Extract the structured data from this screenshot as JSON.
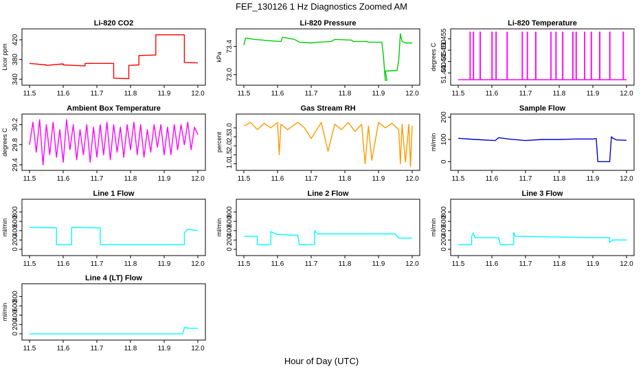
{
  "figure": {
    "title": "FEF_130126  1 Hz Diagnostics Zoomed AM",
    "xlabel": "Hour of Day (UTC)"
  },
  "chart_data": [
    {
      "type": "line",
      "title": "Li-820 CO2",
      "ylabel": "Licor ppm",
      "color": "#ff0000",
      "xlim": [
        11.5,
        12.0
      ],
      "ylim": [
        332,
        438
      ],
      "xticks": [
        "11.5",
        "11.6",
        "11.7",
        "11.8",
        "11.9",
        "12.0"
      ],
      "yticks": [
        340,
        380,
        420
      ],
      "series": [
        {
          "x": [
            11.5,
            11.55,
            11.55,
            11.6,
            11.6,
            11.665,
            11.665,
            11.75,
            11.75,
            11.795,
            11.795,
            11.825,
            11.825,
            11.875,
            11.875,
            11.96,
            11.96,
            12.0
          ],
          "y": [
            372,
            369,
            368,
            371,
            369,
            367,
            372,
            372,
            342,
            341,
            368,
            369,
            388,
            389,
            430,
            430,
            374,
            373
          ]
        }
      ]
    },
    {
      "type": "line",
      "title": "Li-820 Pressure",
      "ylabel": "kPa",
      "color": "#00cc00",
      "xlim": [
        11.5,
        12.0
      ],
      "ylim": [
        72.88,
        73.62
      ],
      "xticks": [
        "11.5",
        "11.6",
        "11.7",
        "11.8",
        "11.9",
        "12.0"
      ],
      "yticks": [
        73.0,
        73.4
      ],
      "series": [
        {
          "x": [
            11.5,
            11.505,
            11.53,
            11.58,
            11.61,
            11.615,
            11.65,
            11.665,
            11.7,
            11.72,
            11.76,
            11.77,
            11.82,
            11.825,
            11.865,
            11.87,
            11.91,
            11.915,
            11.92,
            11.925,
            11.92,
            11.955,
            11.96,
            11.965,
            11.97,
            11.98,
            12.0
          ],
          "y": [
            73.42,
            73.52,
            73.5,
            73.48,
            73.47,
            73.53,
            73.5,
            73.46,
            73.45,
            73.46,
            73.47,
            73.5,
            73.49,
            73.47,
            73.47,
            73.46,
            73.46,
            73.25,
            72.92,
            72.92,
            73.05,
            73.06,
            73.2,
            73.58,
            73.47,
            73.45,
            73.45
          ]
        }
      ]
    },
    {
      "type": "line",
      "title": "Li-820 Temperature",
      "ylabel": "degrees C",
      "color": "#ff00ff",
      "xlim": [
        11.5,
        12.0
      ],
      "ylim": [
        51.4355,
        51.4585
      ],
      "xticks": [
        "11.5",
        "11.6",
        "11.7",
        "11.8",
        "11.9",
        "12.0"
      ],
      "yticks": [
        51.44,
        51.445,
        51.45,
        51.455
      ],
      "series": [
        {
          "x": [
            11.5,
            11.535,
            11.535,
            11.536,
            11.536,
            11.545,
            11.545,
            11.546,
            11.546,
            11.565,
            11.565,
            11.566,
            11.566,
            11.6,
            11.6,
            11.601,
            11.601,
            11.612,
            11.612,
            11.613,
            11.613,
            11.645,
            11.645,
            11.646,
            11.646,
            11.69,
            11.69,
            11.691,
            11.691,
            11.705,
            11.705,
            11.706,
            11.706,
            11.73,
            11.73,
            11.731,
            11.731,
            11.775,
            11.775,
            11.776,
            11.776,
            11.79,
            11.79,
            11.791,
            11.791,
            11.81,
            11.81,
            11.811,
            11.811,
            11.84,
            11.84,
            11.841,
            11.841,
            11.85,
            11.85,
            11.851,
            11.851,
            11.875,
            11.875,
            11.876,
            11.876,
            11.895,
            11.895,
            11.896,
            11.896,
            11.92,
            11.92,
            11.921,
            11.921,
            11.95,
            11.95,
            11.951,
            11.951,
            11.99,
            11.99,
            11.991,
            11.991,
            12.0
          ],
          "y": [
            51.437,
            51.437,
            51.458,
            51.458,
            51.437,
            51.437,
            51.458,
            51.458,
            51.437,
            51.437,
            51.458,
            51.458,
            51.437,
            51.437,
            51.458,
            51.458,
            51.437,
            51.437,
            51.458,
            51.458,
            51.437,
            51.437,
            51.458,
            51.458,
            51.437,
            51.437,
            51.458,
            51.458,
            51.437,
            51.437,
            51.458,
            51.458,
            51.437,
            51.437,
            51.458,
            51.458,
            51.437,
            51.437,
            51.458,
            51.458,
            51.437,
            51.437,
            51.458,
            51.458,
            51.437,
            51.437,
            51.458,
            51.458,
            51.437,
            51.437,
            51.458,
            51.458,
            51.437,
            51.437,
            51.458,
            51.458,
            51.437,
            51.437,
            51.458,
            51.458,
            51.437,
            51.437,
            51.458,
            51.458,
            51.437,
            51.437,
            51.458,
            51.458,
            51.437,
            51.437,
            51.458,
            51.458,
            51.437,
            51.437,
            51.458,
            51.458,
            51.437,
            51.437
          ]
        }
      ]
    },
    {
      "type": "line",
      "title": "Ambient Box Temperature",
      "ylabel": "degrees C",
      "color": "#ff00ff",
      "xlim": [
        11.5,
        12.0
      ],
      "ylim": [
        29.33,
        30.37
      ],
      "xticks": [
        "11.5",
        "11.6",
        "11.7",
        "11.8",
        "11.9",
        "12.0"
      ],
      "yticks": [
        29.4,
        29.8,
        30.2
      ],
      "series": [
        {
          "x": [
            11.5,
            11.51,
            11.52,
            11.53,
            11.54,
            11.55,
            11.56,
            11.57,
            11.58,
            11.59,
            11.6,
            11.61,
            11.62,
            11.63,
            11.64,
            11.65,
            11.66,
            11.67,
            11.68,
            11.69,
            11.7,
            11.71,
            11.72,
            11.73,
            11.74,
            11.75,
            11.76,
            11.77,
            11.78,
            11.79,
            11.8,
            11.81,
            11.82,
            11.83,
            11.84,
            11.85,
            11.86,
            11.87,
            11.88,
            11.89,
            11.9,
            11.91,
            11.92,
            11.93,
            11.94,
            11.95,
            11.96,
            11.97,
            11.98,
            11.99,
            12.0
          ],
          "y": [
            29.8,
            30.25,
            29.65,
            30.3,
            29.4,
            30.2,
            29.6,
            30.25,
            29.55,
            30.1,
            29.45,
            30.3,
            29.7,
            30.2,
            29.5,
            30.1,
            29.6,
            30.2,
            29.45,
            30.15,
            29.55,
            30.2,
            29.6,
            30.25,
            29.5,
            30.2,
            29.65,
            30.15,
            29.55,
            30.2,
            29.7,
            30.25,
            29.6,
            30.2,
            29.55,
            30.1,
            29.65,
            30.2,
            29.75,
            30.2,
            29.6,
            30.15,
            29.6,
            30.2,
            29.7,
            30.2,
            29.8,
            30.25,
            29.7,
            30.15,
            30.0
          ]
        }
      ]
    },
    {
      "type": "line",
      "title": "Gas Stream RH",
      "ylabel": "percent",
      "color": "#ff9900",
      "xlim": [
        11.5,
        12.0
      ],
      "ylim": [
        0.75,
        3.65
      ],
      "xticks": [
        "11.5",
        "11.6",
        "11.7",
        "11.8",
        "11.9",
        "12.0"
      ],
      "yticks": [
        1.0,
        1.5,
        2.0,
        2.5,
        3.0
      ],
      "series": [
        {
          "x": [
            11.5,
            11.52,
            11.54,
            11.56,
            11.58,
            11.6,
            11.605,
            11.61,
            11.63,
            11.66,
            11.68,
            11.7,
            11.73,
            11.75,
            11.77,
            11.79,
            11.81,
            11.83,
            11.85,
            11.86,
            11.87,
            11.88,
            11.9,
            11.92,
            11.94,
            11.96,
            11.965,
            11.97,
            11.98,
            11.99,
            11.995,
            12.0
          ],
          "y": [
            3.1,
            3.3,
            2.9,
            3.25,
            3.0,
            3.3,
            1.5,
            3.2,
            2.9,
            3.3,
            3.0,
            2.4,
            3.3,
            1.7,
            3.2,
            2.9,
            3.3,
            2.8,
            3.2,
            1.0,
            3.1,
            1.2,
            3.3,
            3.0,
            3.25,
            2.9,
            1.0,
            3.2,
            1.1,
            3.2,
            0.85,
            3.1
          ]
        }
      ]
    },
    {
      "type": "line",
      "title": "Sample Flow",
      "ylabel": "ml/min",
      "color": "#0000cc",
      "xlim": [
        11.5,
        12.0
      ],
      "ylim": [
        -30,
        205
      ],
      "xticks": [
        "11.5",
        "11.6",
        "11.7",
        "11.8",
        "11.9",
        "12.0"
      ],
      "yticks": [
        0,
        100,
        200
      ],
      "series": [
        {
          "x": [
            11.5,
            11.55,
            11.6,
            11.61,
            11.62,
            11.65,
            11.7,
            11.75,
            11.8,
            11.85,
            11.9,
            11.91,
            11.915,
            11.95,
            11.955,
            11.96,
            11.97,
            12.0
          ],
          "y": [
            105,
            100,
            96,
            95,
            108,
            102,
            95,
            100,
            100,
            102,
            102,
            104,
            0,
            0,
            112,
            105,
            98,
            96
          ]
        }
      ]
    },
    {
      "type": "line",
      "title": "Line 1 Flow",
      "ylabel": "ml/min",
      "color": "#00ffff",
      "xlim": [
        11.5,
        12.0
      ],
      "ylim": [
        -90,
        1030
      ],
      "xticks": [
        "11.5",
        "11.6",
        "11.7",
        "11.8",
        "11.9",
        "12.0"
      ],
      "yticks": [
        0,
        200,
        400,
        600,
        800
      ],
      "series": [
        {
          "x": [
            11.5,
            11.58,
            11.58,
            11.625,
            11.625,
            11.71,
            11.71,
            11.96,
            11.96,
            11.97,
            12.0
          ],
          "y": [
            470,
            460,
            100,
            100,
            470,
            460,
            100,
            100,
            350,
            430,
            400
          ]
        }
      ]
    },
    {
      "type": "line",
      "title": "Line 2 Flow",
      "ylabel": "ml/min",
      "color": "#00ffff",
      "xlim": [
        11.5,
        12.0
      ],
      "ylim": [
        -90,
        1030
      ],
      "xticks": [
        "11.5",
        "11.6",
        "11.7",
        "11.8",
        "11.9",
        "12.0"
      ],
      "yticks": [
        0,
        200,
        400,
        600,
        800
      ],
      "series": [
        {
          "x": [
            11.5,
            11.54,
            11.54,
            11.58,
            11.58,
            11.6,
            11.66,
            11.665,
            11.665,
            11.71,
            11.71,
            11.72,
            11.95,
            11.96,
            12.0
          ],
          "y": [
            280,
            280,
            100,
            100,
            380,
            320,
            300,
            100,
            100,
            100,
            400,
            330,
            330,
            240,
            240
          ]
        }
      ]
    },
    {
      "type": "line",
      "title": "Line 3 Flow",
      "ylabel": "ml/min",
      "color": "#00ffff",
      "xlim": [
        11.5,
        12.0
      ],
      "ylim": [
        -90,
        1030
      ],
      "xticks": [
        "11.5",
        "11.6",
        "11.7",
        "11.8",
        "11.9",
        "12.0"
      ],
      "yticks": [
        0,
        200,
        400,
        600,
        800
      ],
      "series": [
        {
          "x": [
            11.5,
            11.54,
            11.54,
            11.545,
            11.55,
            11.62,
            11.625,
            11.625,
            11.665,
            11.665,
            11.67,
            11.9,
            11.95,
            11.95,
            11.96,
            12.0
          ],
          "y": [
            100,
            100,
            280,
            350,
            250,
            250,
            100,
            100,
            100,
            360,
            280,
            250,
            250,
            150,
            200,
            200
          ]
        }
      ]
    },
    {
      "type": "line",
      "title": "Line 4 (LT) Flow",
      "ylabel": "ml/min",
      "color": "#00ffff",
      "xlim": [
        11.5,
        12.0
      ],
      "ylim": [
        -90,
        1030
      ],
      "xticks": [
        "11.5",
        "11.6",
        "11.7",
        "11.8",
        "11.9",
        "12.0"
      ],
      "yticks": [
        0,
        200,
        400,
        600,
        800
      ],
      "series": [
        {
          "x": [
            11.5,
            11.955,
            11.96,
            11.965,
            11.97,
            12.0
          ],
          "y": [
            0,
            0,
            130,
            140,
            120,
            120
          ]
        }
      ]
    }
  ]
}
